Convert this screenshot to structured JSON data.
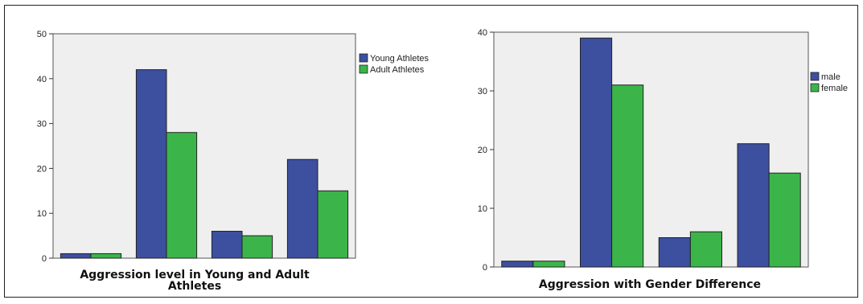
{
  "chart_data": [
    {
      "type": "bar",
      "title": "",
      "xlabel": "Aggression level in Young and Adult Athletes",
      "ylabel": "",
      "categories": [
        "",
        "",
        "",
        ""
      ],
      "series": [
        {
          "name": "Young Athletes",
          "values": [
            1,
            42,
            6,
            22
          ],
          "color": "#3d4f9f"
        },
        {
          "name": "Adult Athletes",
          "values": [
            1,
            28,
            5,
            15
          ],
          "color": "#3bb54a"
        }
      ],
      "ylim": [
        0,
        50
      ],
      "yticks": [
        0,
        10,
        20,
        30,
        40,
        50
      ],
      "legend": "right",
      "grid": false,
      "background": "#efefef"
    },
    {
      "type": "bar",
      "title": "",
      "xlabel": "Aggression with Gender Difference",
      "ylabel": "",
      "categories": [
        "",
        "",
        "",
        ""
      ],
      "series": [
        {
          "name": "male",
          "values": [
            1,
            39,
            5,
            21
          ],
          "color": "#3d4f9f"
        },
        {
          "name": "female",
          "values": [
            1,
            31,
            6,
            16
          ],
          "color": "#3bb54a"
        }
      ],
      "ylim": [
        0,
        40
      ],
      "yticks": [
        0,
        10,
        20,
        30,
        40
      ],
      "legend": "right",
      "grid": false,
      "background": "#efefef"
    }
  ]
}
